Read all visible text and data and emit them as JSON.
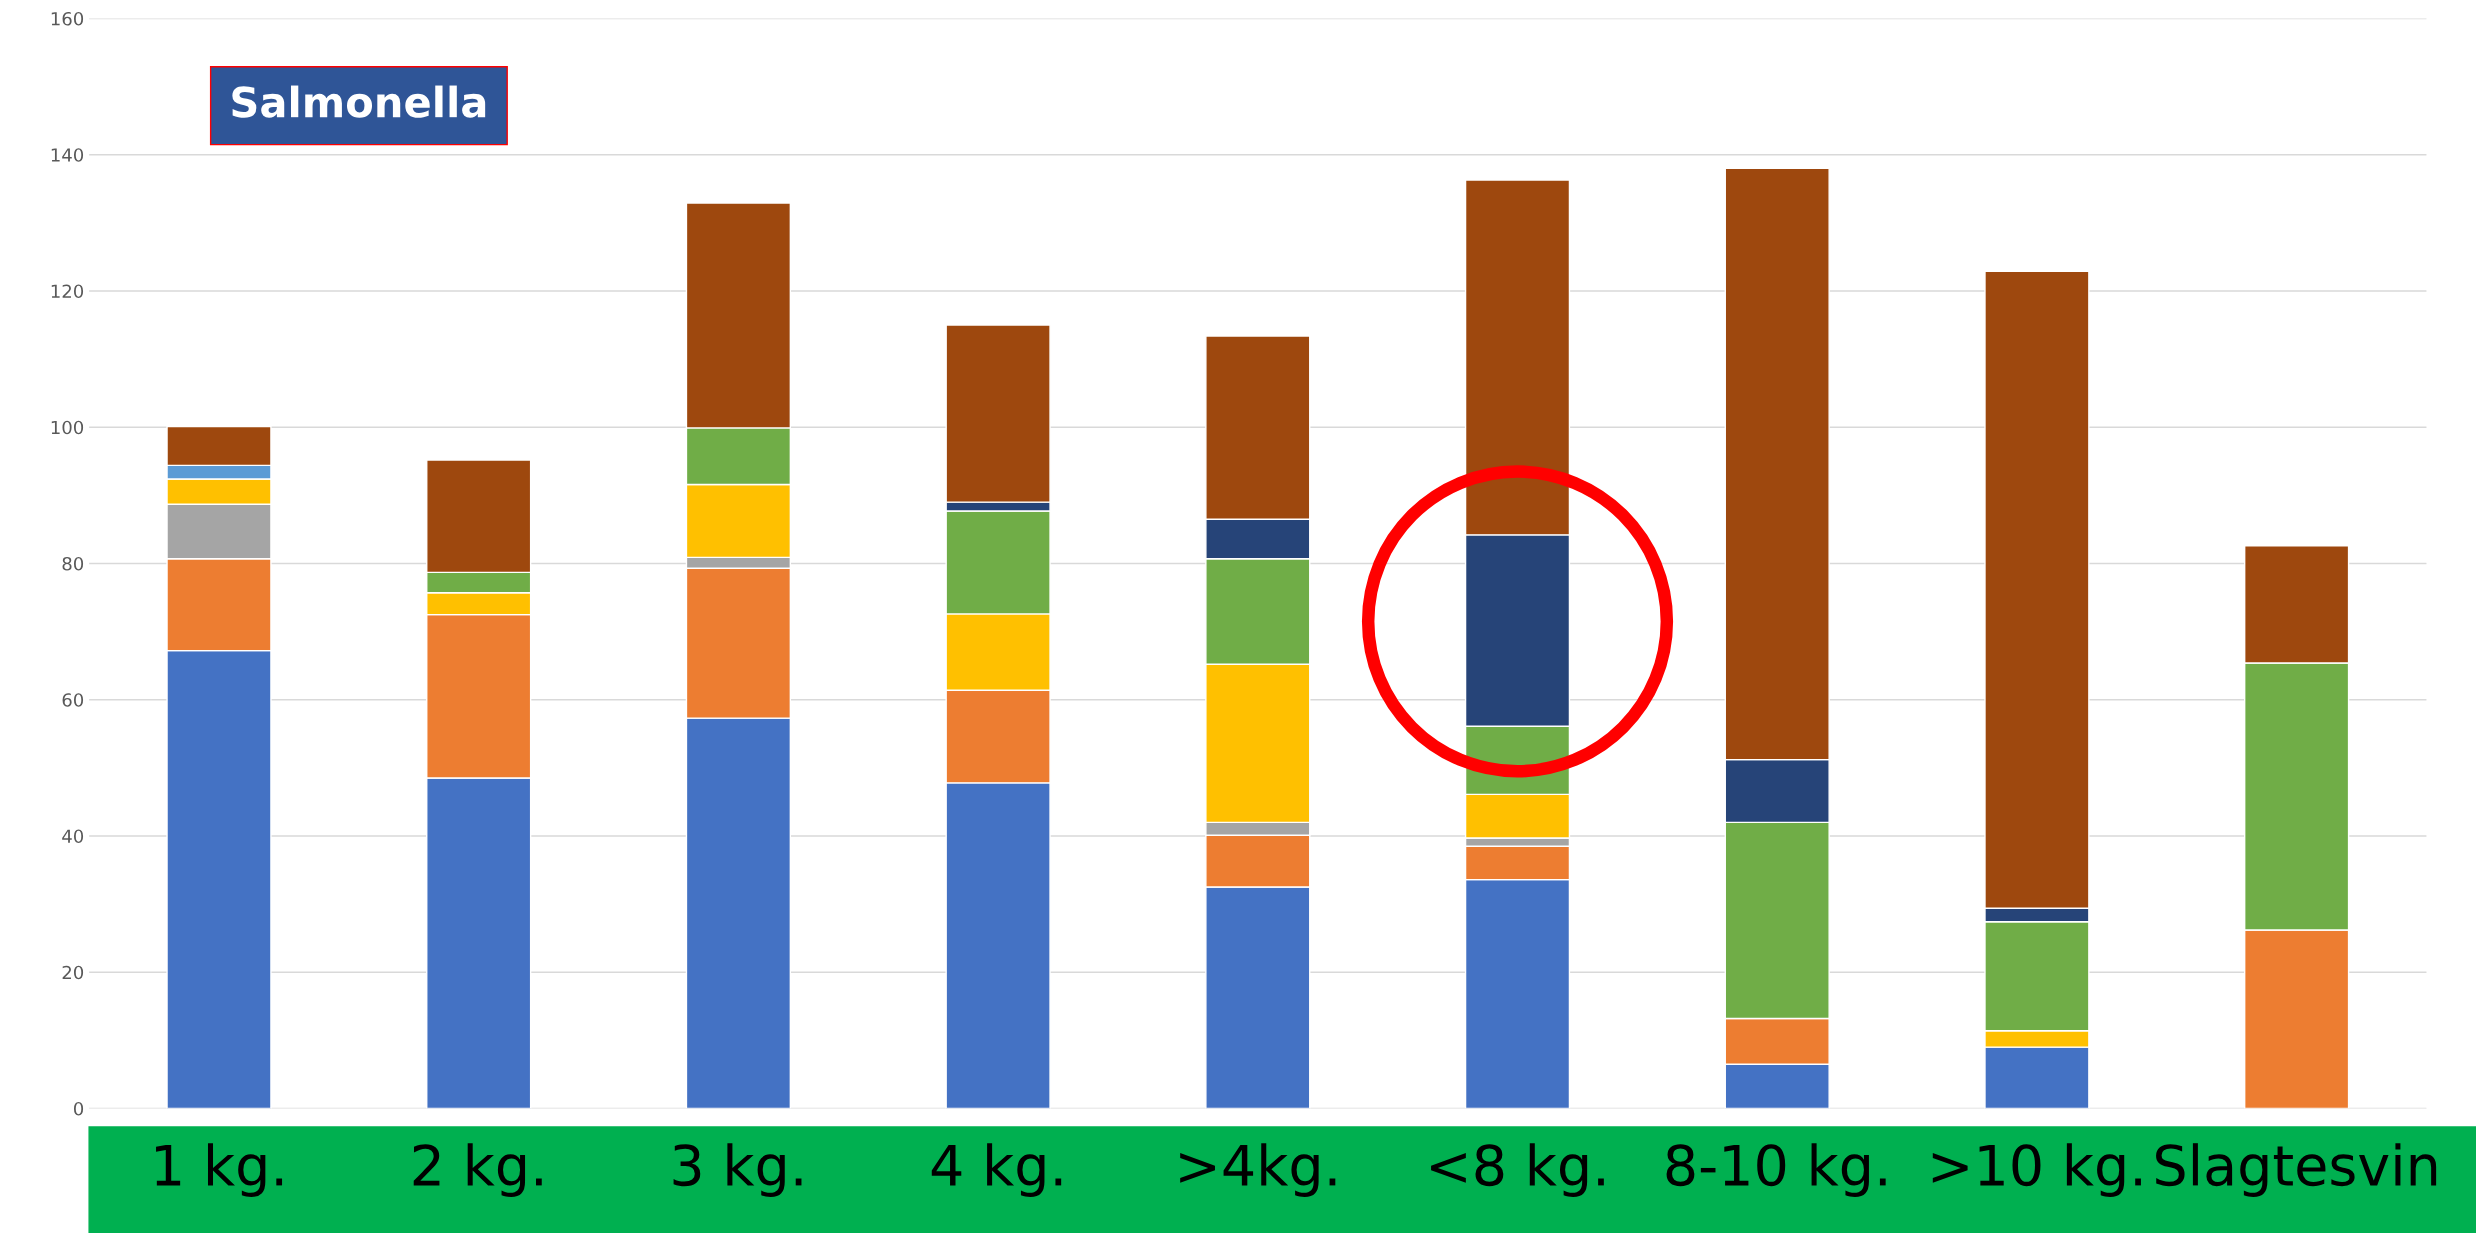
{
  "chart_data": {
    "type": "bar",
    "stacked": true,
    "categories": [
      "1 kg.",
      "2 kg.",
      "3 kg.",
      "4 kg.",
      ">4kg.",
      "<8 kg.",
      "8-10 kg.",
      ">10 kg.",
      "Slagtesvin"
    ],
    "series": [
      {
        "color": "#4472c4",
        "values": [
          67.2,
          48.5,
          57.3,
          47.8,
          32.5,
          33.6,
          6.5,
          9,
          null
        ]
      },
      {
        "color": "#ed7d31",
        "values": [
          13.5,
          24,
          22,
          13.6,
          7.6,
          4.9,
          6.7,
          null,
          26.2
        ]
      },
      {
        "color": "#a5a5a5",
        "values": [
          8,
          null,
          1.6,
          null,
          1.9,
          1.2,
          null,
          null,
          null
        ]
      },
      {
        "color": "#ffc000",
        "values": [
          3.7,
          3.2,
          10.7,
          11.2,
          23.2,
          6.4,
          null,
          2.4,
          null
        ]
      },
      {
        "color": "#5b9bd5",
        "values": [
          2,
          null,
          null,
          null,
          null,
          null,
          null,
          null,
          null
        ]
      },
      {
        "color": "#70ad47",
        "values": [
          null,
          3,
          8.3,
          15.1,
          15.5,
          10,
          28.8,
          16,
          39.2
        ]
      },
      {
        "color": "#264478",
        "values": [
          null,
          null,
          null,
          1.3,
          5.8,
          28.1,
          9.2,
          2,
          null
        ]
      },
      {
        "color": "#9e480e",
        "values": [
          5.7,
          16.5,
          33,
          26,
          26.9,
          52.1,
          86.8,
          93.5,
          17.2
        ]
      }
    ],
    "ylim": [
      0,
      160
    ],
    "yticks": [
      0,
      20,
      40,
      60,
      80,
      100,
      120,
      140,
      160
    ],
    "grid": "y",
    "annotations": [
      "Salmonella"
    ]
  }
}
